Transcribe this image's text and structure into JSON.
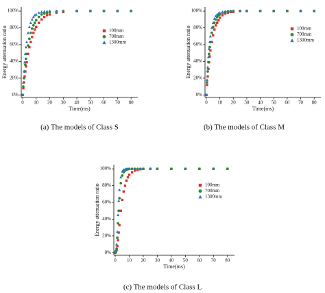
{
  "chart_data": [
    {
      "type": "scatter",
      "caption": "(a) The models of Class S",
      "xlabel": "Time(ms)",
      "ylabel": "Energy attenuation ratio",
      "x": [
        0,
        0.5,
        1,
        1.5,
        2,
        2.5,
        3,
        4,
        5,
        6,
        7,
        8,
        9,
        10,
        12,
        14,
        16,
        18,
        20,
        25,
        30,
        40,
        50,
        60,
        70,
        80
      ],
      "xlim": [
        -1,
        85
      ],
      "xticks": [
        0,
        10,
        20,
        30,
        40,
        50,
        60,
        70,
        80
      ],
      "ylim": [
        -3,
        105
      ],
      "yticks": [
        {
          "value": 0,
          "label": "0%"
        },
        {
          "value": 20,
          "label": "20%"
        },
        {
          "value": 40,
          "label": "40%"
        },
        {
          "value": 60,
          "label": "60%"
        },
        {
          "value": 80,
          "label": "80%"
        },
        {
          "value": 100,
          "label": "100%"
        }
      ],
      "series": [
        {
          "name": "100mm",
          "color": "#e0302c",
          "marker": "square",
          "values": [
            0,
            8,
            15,
            22,
            28,
            34,
            39,
            49,
            57,
            63,
            69,
            74,
            78,
            81,
            86,
            90,
            93,
            95,
            96,
            98,
            99,
            99.9,
            100,
            100,
            100,
            100
          ]
        },
        {
          "name": "700mm",
          "color": "#2a8a2a",
          "marker": "circle",
          "values": [
            0,
            10,
            20,
            28,
            36,
            43,
            49,
            59,
            67,
            74,
            79,
            83,
            86,
            89,
            93,
            96,
            97,
            98,
            99,
            99.6,
            99.9,
            100,
            100,
            100,
            100,
            100
          ]
        },
        {
          "name": "1300mm",
          "color": "#2e75b6",
          "marker": "triangle",
          "values": [
            0,
            15,
            28,
            39,
            49,
            57,
            63,
            74,
            81,
            86,
            90,
            93,
            95,
            96,
            98,
            99,
            99.5,
            99.8,
            100,
            100,
            100,
            100,
            100,
            100,
            100,
            100
          ]
        }
      ]
    },
    {
      "type": "scatter",
      "caption": "(b) The models of Class M",
      "xlabel": "Time(ms)",
      "ylabel": "Energy attenuation ratio",
      "x": [
        0,
        0.5,
        1,
        1.5,
        2,
        2.5,
        3,
        4,
        5,
        6,
        7,
        8,
        9,
        10,
        12,
        14,
        16,
        18,
        20,
        25,
        30,
        40,
        50,
        60,
        70,
        80
      ],
      "xlim": [
        -1,
        85
      ],
      "xticks": [
        0,
        10,
        20,
        30,
        40,
        50,
        60,
        70,
        80
      ],
      "ylim": [
        -3,
        105
      ],
      "yticks": [
        {
          "value": 0,
          "label": "0%"
        },
        {
          "value": 20,
          "label": "20%"
        },
        {
          "value": 40,
          "label": "40%"
        },
        {
          "value": 60,
          "label": "60%"
        },
        {
          "value": 80,
          "label": "80%"
        },
        {
          "value": 100,
          "label": "100%"
        }
      ],
      "series": [
        {
          "name": "100mm",
          "color": "#e0302c",
          "marker": "square",
          "values": [
            0,
            12,
            22,
            31,
            39,
            46,
            53,
            63,
            71,
            78,
            83,
            86,
            89,
            92,
            95,
            97,
            98,
            99,
            99,
            100,
            100,
            100,
            100,
            100,
            100,
            100
          ]
        },
        {
          "name": "700mm",
          "color": "#2a8a2a",
          "marker": "circle",
          "values": [
            0,
            15,
            28,
            39,
            49,
            57,
            63,
            74,
            81,
            86,
            90,
            93,
            95,
            96,
            98,
            99,
            99.5,
            99.8,
            100,
            100,
            100,
            100,
            100,
            100,
            100,
            100
          ]
        },
        {
          "name": "1300mm",
          "color": "#2e75b6",
          "marker": "triangle",
          "values": [
            0,
            18,
            33,
            45,
            55,
            63,
            70,
            80,
            86,
            91,
            94,
            96,
            97,
            98,
            99,
            99.6,
            100,
            100,
            100,
            100,
            100,
            100,
            100,
            100,
            100,
            100
          ]
        }
      ]
    },
    {
      "type": "scatter",
      "caption": "(c) The models of Class L",
      "xlabel": "Time(ms)",
      "ylabel": "Energy attenuation ratio",
      "x": [
        0,
        0.5,
        1,
        1.5,
        2,
        2.5,
        3,
        4,
        5,
        6,
        7,
        8,
        9,
        10,
        12,
        14,
        16,
        18,
        20,
        25,
        30,
        40,
        50,
        60,
        70,
        80
      ],
      "xlim": [
        -1,
        85
      ],
      "xticks": [
        0,
        10,
        20,
        30,
        40,
        50,
        60,
        70,
        80
      ],
      "ylim": [
        -3,
        105
      ],
      "yticks": [
        {
          "value": 0,
          "label": "0%"
        },
        {
          "value": 20,
          "label": "20%"
        },
        {
          "value": 40,
          "label": "40%"
        },
        {
          "value": 60,
          "label": "60%"
        },
        {
          "value": 80,
          "label": "80%"
        },
        {
          "value": 100,
          "label": "100%"
        }
      ],
      "series": [
        {
          "name": "100mm",
          "color": "#e0302c",
          "marker": "square",
          "values": [
            0,
            1,
            3,
            8,
            15,
            24,
            33,
            50,
            63,
            73,
            80,
            86,
            90,
            93,
            96,
            98,
            99,
            99.5,
            100,
            100,
            100,
            100,
            100,
            100,
            100,
            100
          ]
        },
        {
          "name": "700mm",
          "color": "#2a8a2a",
          "marker": "circle",
          "values": [
            0,
            2,
            5,
            18,
            35,
            50,
            65,
            83,
            92,
            96,
            98,
            99,
            99.5,
            100,
            100,
            100,
            100,
            100,
            100,
            100,
            100,
            100,
            100,
            100,
            100,
            100
          ]
        },
        {
          "name": "1300mm",
          "color": "#2e75b6",
          "marker": "triangle",
          "values": [
            0,
            3,
            10,
            25,
            45,
            62,
            75,
            90,
            97,
            99,
            99.6,
            100,
            100,
            100,
            100,
            100,
            100,
            100,
            100,
            100,
            100,
            100,
            100,
            100,
            100,
            100
          ]
        }
      ]
    }
  ]
}
